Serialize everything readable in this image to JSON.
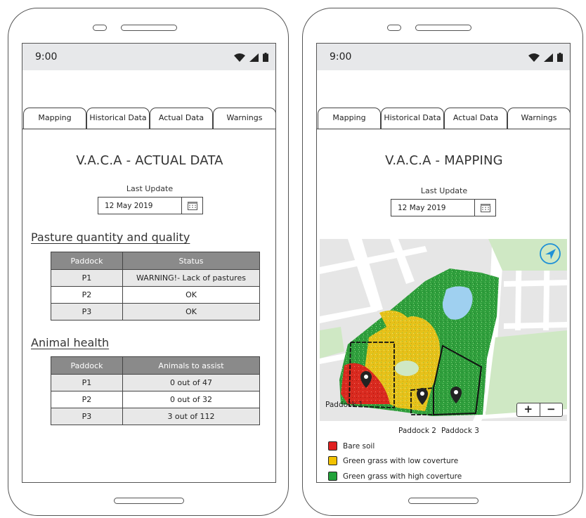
{
  "left_phone": {
    "status_time": "9:00",
    "tabs": [
      "Mapping",
      "Historical Data",
      "Actual Data",
      "Warnings"
    ],
    "title": "V.A.C.A - ACTUAL DATA",
    "last_update_label": "Last Update",
    "date_value": "12 May 2019",
    "pasture": {
      "heading": "Pasture quantity and quality",
      "columns": [
        "Paddock",
        "Status"
      ],
      "rows": [
        {
          "paddock": "P1",
          "value": "WARNING!- Lack of pastures"
        },
        {
          "paddock": "P2",
          "value": "OK"
        },
        {
          "paddock": "P3",
          "value": "OK"
        }
      ]
    },
    "health": {
      "heading": "Animal health",
      "columns": [
        "Paddock",
        "Animals to assist"
      ],
      "rows": [
        {
          "paddock": "P1",
          "value": "0 out of 47"
        },
        {
          "paddock": "P2",
          "value": "0 out of 32"
        },
        {
          "paddock": "P3",
          "value": "3 out of 112"
        }
      ]
    }
  },
  "right_phone": {
    "status_time": "9:00",
    "tabs": [
      "Mapping",
      "Historical Data",
      "Actual Data",
      "Warnings"
    ],
    "title": "V.A.C.A - MAPPING",
    "last_update_label": "Last Update",
    "date_value": "12 May 2019",
    "map": {
      "paddock_labels": [
        "Paddock 1",
        "Paddock 2",
        "Paddock 3"
      ],
      "zoom_in": "+",
      "zoom_out": "−"
    },
    "legend": [
      {
        "label": "Bare soil",
        "color": "#e02020"
      },
      {
        "label": "Green grass with low coverture",
        "color": "#f2c200"
      },
      {
        "label": "Green grass with high coverture",
        "color": "#22a23a"
      }
    ]
  },
  "colors": {
    "table_header": "#8a8a8a",
    "statusbar": "#e7e8ea",
    "map_water": "#9fd0f0",
    "map_park": "#cfe8c4",
    "map_road_bg": "#e6e6e6",
    "compass": "#1e90d6"
  },
  "icons": [
    "wifi-icon",
    "signal-icon",
    "battery-icon",
    "calendar-icon",
    "map-pin-icon",
    "navigation-arrow-icon"
  ]
}
